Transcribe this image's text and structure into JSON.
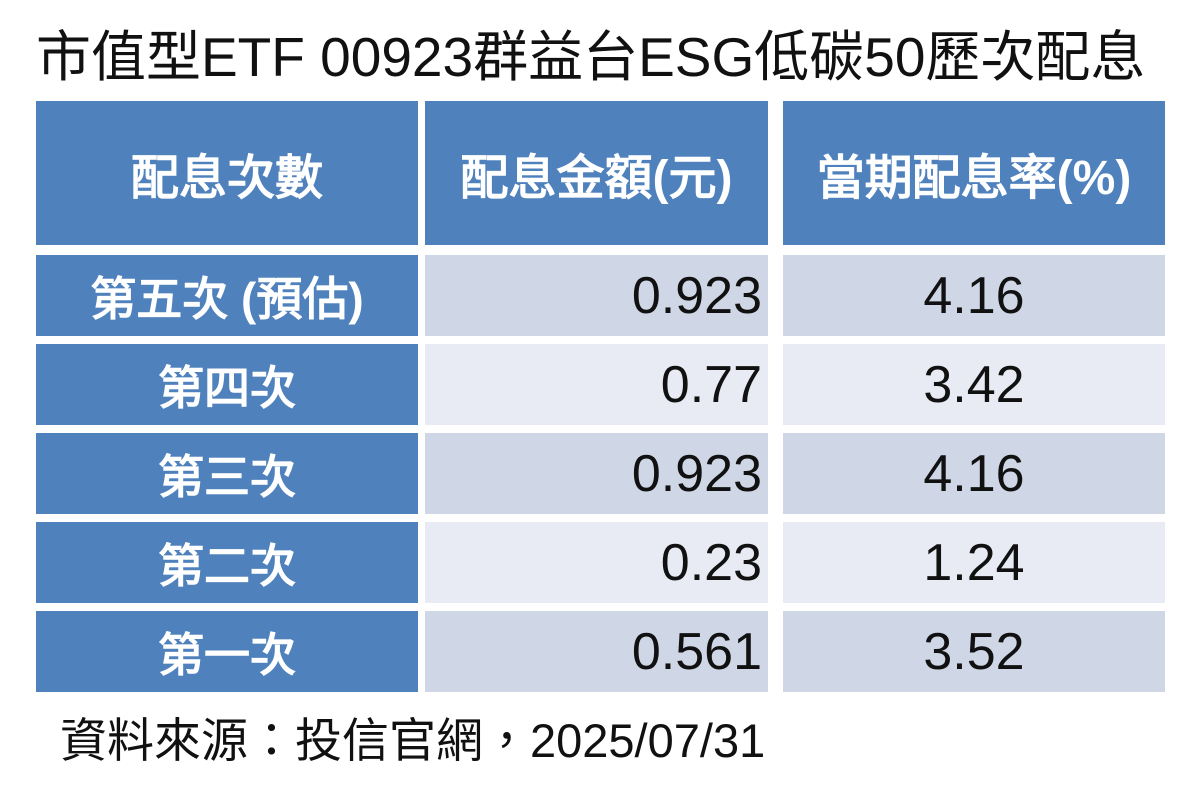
{
  "title": "市值型ETF 00923群益台ESG低碳50歷次配息",
  "table": {
    "headers": {
      "period": "配息次數",
      "amount": "配息金額(元)",
      "rate": "當期配息率(%)"
    },
    "rows": [
      {
        "label": "第五次 (預估)",
        "amount": "0.923",
        "rate": "4.16"
      },
      {
        "label": "第四次",
        "amount": "0.77",
        "rate": "3.42"
      },
      {
        "label": "第三次",
        "amount": "0.923",
        "rate": "4.16"
      },
      {
        "label": "第二次",
        "amount": "0.23",
        "rate": "1.24"
      },
      {
        "label": "第一次",
        "amount": "0.561",
        "rate": "3.52"
      }
    ]
  },
  "footer": {
    "source": "資料來源：投信官網，2025/07/31"
  },
  "colors": {
    "header_blue": "#4F81BD",
    "band_dark": "#CFD6E6",
    "band_light": "#E8EBF4",
    "border_white": "#FFFFFF",
    "text_dark": "#111111",
    "text_light": "#FFFFFF"
  },
  "chart_data": {
    "type": "table",
    "title": "市值型ETF 00923群益台ESG低碳50歷次配息",
    "columns": [
      "配息次數",
      "配息金額(元)",
      "當期配息率(%)"
    ],
    "rows": [
      [
        "第五次 (預估)",
        0.923,
        4.16
      ],
      [
        "第四次",
        0.77,
        3.42
      ],
      [
        "第三次",
        0.923,
        4.16
      ],
      [
        "第二次",
        0.23,
        1.24
      ],
      [
        "第一次",
        0.561,
        3.52
      ]
    ],
    "source": "資料來源：投信官網，2025/07/31",
    "layout": {
      "header_fill": "#4F81BD",
      "first_column_fill": "#4F81BD",
      "banded_rows": [
        "#CFD6E6",
        "#E8EBF4"
      ],
      "amount_align": "right",
      "rate_align": "center"
    }
  }
}
